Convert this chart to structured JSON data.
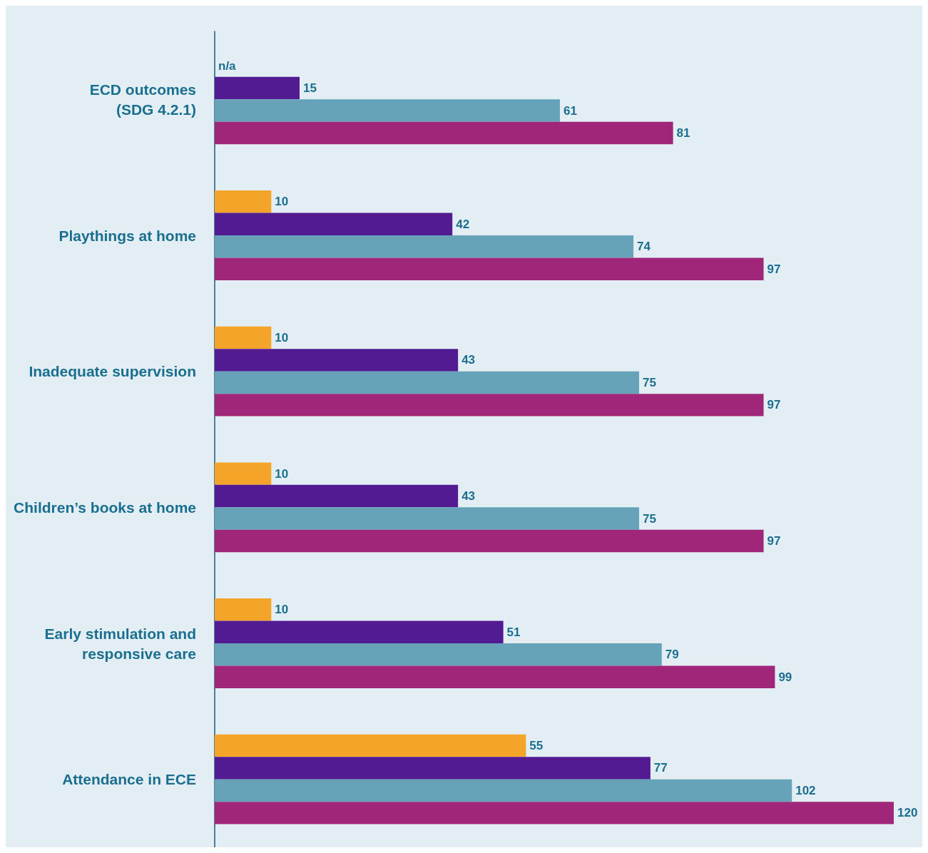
{
  "chart_data": {
    "type": "bar",
    "orientation": "horizontal",
    "categories": [
      "ECD outcomes\n(SDG 4.2.1)",
      "Playthings at home",
      "Inadequate supervision",
      "Children’s books at home",
      "Early stimulation and responsive care",
      "Attendance in ECE"
    ],
    "series": [
      {
        "color": "#f5a42a",
        "values": [
          null,
          10,
          10,
          10,
          10,
          55
        ],
        "value_labels": [
          "n/a",
          "10",
          "10",
          "10",
          "10",
          "55"
        ]
      },
      {
        "color": "#521b92",
        "values": [
          15,
          42,
          43,
          43,
          51,
          77
        ]
      },
      {
        "color": "#66a3b8",
        "values": [
          61,
          74,
          75,
          75,
          79,
          102
        ]
      },
      {
        "color": "#a0267a",
        "values": [
          81,
          97,
          97,
          97,
          99,
          120
        ]
      }
    ],
    "data_labels": true
  }
}
